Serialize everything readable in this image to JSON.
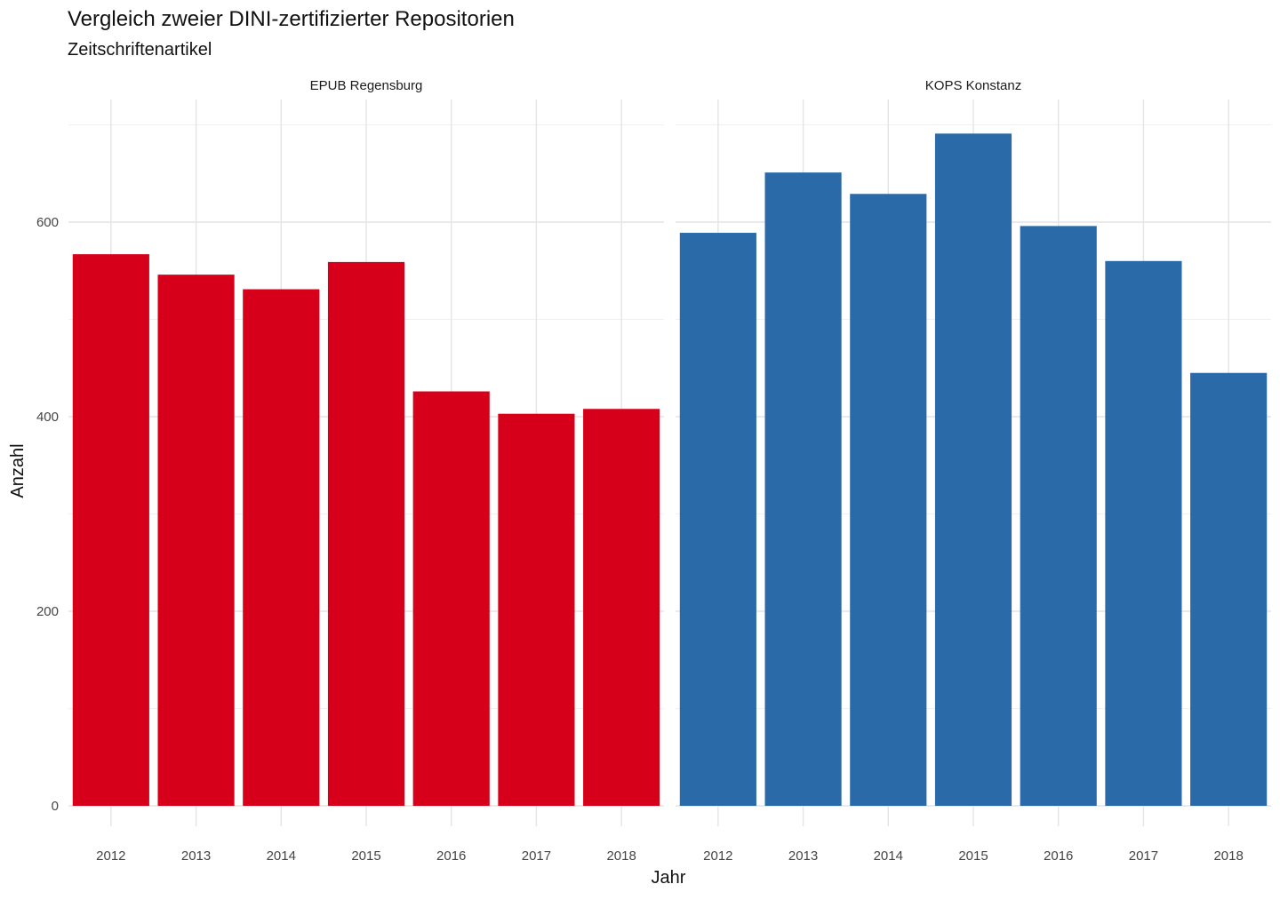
{
  "chart_data": {
    "type": "bar",
    "title": "Vergleich zweier DINI-zertifizierter Repositorien",
    "subtitle": "Zeitschriftenartikel",
    "xlabel": "Jahr",
    "ylabel": "Anzahl",
    "ylim": [
      0,
      700
    ],
    "yticks": [
      0,
      200,
      400,
      600
    ],
    "grid": true,
    "legend": "none",
    "categories": [
      "2012",
      "2013",
      "2014",
      "2015",
      "2016",
      "2017",
      "2018"
    ],
    "panels": [
      {
        "name": "EPUB Regensburg",
        "color": "#d7001b",
        "values": [
          567,
          546,
          531,
          559,
          426,
          403,
          408
        ]
      },
      {
        "name": "KOPS Konstanz",
        "color": "#2b6aa8",
        "values": [
          589,
          651,
          629,
          691,
          596,
          560,
          445
        ]
      }
    ]
  }
}
